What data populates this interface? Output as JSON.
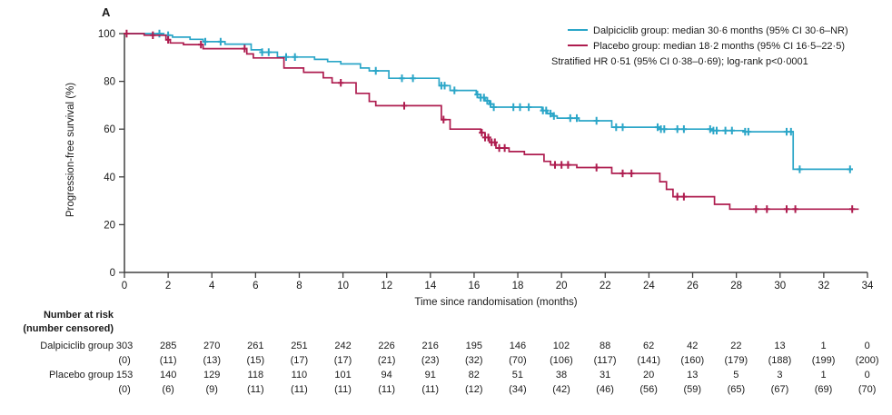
{
  "panel_label": "A",
  "colors": {
    "dalpiciclib": "#2BA6C8",
    "placebo": "#AE1C4F",
    "axis": "#404040",
    "text": "#1A1A1A"
  },
  "legend": {
    "entries": [
      {
        "label": "Dalpiciclib group: median 30·6 months (95% CI 30·6–NR)",
        "color_key": "dalpiciclib"
      },
      {
        "label": "Placebo group: median 18·2 months (95% CI 16·5–22·5)",
        "color_key": "placebo"
      }
    ],
    "note": "Stratified HR 0·51 (95% CI 0·38–0·69); log-rank p<0·0001"
  },
  "chart_data": {
    "type": "line",
    "subtype": "kaplan-meier-step",
    "title": "",
    "xlabel": "Time since randomisation (months)",
    "ylabel": "Progression-free survival (%)",
    "xlim": [
      0,
      34
    ],
    "ylim": [
      0,
      100
    ],
    "xticks": [
      0,
      2,
      4,
      6,
      8,
      10,
      12,
      14,
      16,
      18,
      20,
      22,
      24,
      26,
      28,
      30,
      32,
      34
    ],
    "yticks": [
      0,
      20,
      40,
      60,
      80,
      100
    ],
    "grid": false,
    "legend_position": "top-right",
    "series": [
      {
        "name": "Dalpiciclib group",
        "color_key": "dalpiciclib",
        "median_months": "30·6",
        "ci95": "30·6–NR",
        "steps": [
          [
            0,
            100
          ],
          [
            1.8,
            99.3
          ],
          [
            2.2,
            98.5
          ],
          [
            3.0,
            97.6
          ],
          [
            3.6,
            96.6
          ],
          [
            4.6,
            95.6
          ],
          [
            5.8,
            93.2
          ],
          [
            6.3,
            92.2
          ],
          [
            7.0,
            90.2
          ],
          [
            8.7,
            89.2
          ],
          [
            9.3,
            88.3
          ],
          [
            9.9,
            87.3
          ],
          [
            10.8,
            85.6
          ],
          [
            11.2,
            84.4
          ],
          [
            12.1,
            81.3
          ],
          [
            14.4,
            78.2
          ],
          [
            14.9,
            76.2
          ],
          [
            16.1,
            74.5
          ],
          [
            16.3,
            73.2
          ],
          [
            16.5,
            71.9
          ],
          [
            16.7,
            70.5
          ],
          [
            16.9,
            69.2
          ],
          [
            19.1,
            67.8
          ],
          [
            19.35,
            66.5
          ],
          [
            19.6,
            65.5
          ],
          [
            19.8,
            64.6
          ],
          [
            20.8,
            63.5
          ],
          [
            22.3,
            60.8
          ],
          [
            24.5,
            60.0
          ],
          [
            26.9,
            59.4
          ],
          [
            28.4,
            58.9
          ],
          [
            30.6,
            43.2
          ],
          [
            33.3,
            43.2
          ]
        ],
        "censor_months": [
          1.6,
          2.0,
          3.7,
          4.4,
          6.3,
          6.6,
          7.4,
          7.8,
          11.5,
          12.7,
          13.2,
          14.5,
          14.65,
          15.1,
          16.15,
          16.3,
          16.45,
          16.6,
          16.75,
          16.9,
          17.8,
          18.1,
          18.5,
          19.15,
          19.3,
          19.5,
          19.65,
          20.4,
          20.7,
          21.6,
          22.5,
          22.8,
          24.4,
          24.55,
          24.7,
          25.3,
          25.6,
          26.8,
          26.95,
          27.1,
          27.5,
          27.8,
          28.4,
          28.55,
          30.3,
          30.5,
          30.9,
          33.2
        ]
      },
      {
        "name": "Placebo group",
        "color_key": "placebo",
        "median_months": "18·2",
        "ci95": "16·5–22·5",
        "steps": [
          [
            0,
            100
          ],
          [
            0.9,
            99.3
          ],
          [
            1.9,
            97.4
          ],
          [
            2.1,
            96.1
          ],
          [
            2.7,
            95.4
          ],
          [
            3.6,
            93.7
          ],
          [
            5.6,
            91.5
          ],
          [
            5.9,
            89.8
          ],
          [
            7.3,
            85.6
          ],
          [
            8.2,
            83.8
          ],
          [
            9.1,
            81.5
          ],
          [
            9.5,
            79.4
          ],
          [
            10.6,
            75.0
          ],
          [
            11.2,
            71.6
          ],
          [
            11.5,
            69.8
          ],
          [
            14.5,
            64.0
          ],
          [
            14.9,
            60.0
          ],
          [
            16.3,
            58.5
          ],
          [
            16.5,
            56.5
          ],
          [
            16.7,
            54.5
          ],
          [
            17.0,
            52.1
          ],
          [
            17.6,
            50.6
          ],
          [
            18.3,
            49.4
          ],
          [
            19.2,
            46.5
          ],
          [
            19.5,
            45.0
          ],
          [
            20.7,
            43.9
          ],
          [
            22.3,
            41.5
          ],
          [
            24.5,
            38.0
          ],
          [
            24.8,
            34.8
          ],
          [
            25.1,
            31.7
          ],
          [
            27.0,
            28.5
          ],
          [
            27.7,
            26.5
          ],
          [
            33.6,
            26.5
          ]
        ],
        "censor_months": [
          0.1,
          1.3,
          2.0,
          3.5,
          5.5,
          9.9,
          12.8,
          14.6,
          16.35,
          16.5,
          16.65,
          16.8,
          16.95,
          17.15,
          17.4,
          19.7,
          20.0,
          20.3,
          21.6,
          22.8,
          23.2,
          25.3,
          25.6,
          28.9,
          29.4,
          30.3,
          30.7,
          33.3
        ]
      }
    ],
    "stats_note": "Stratified HR 0·51 (95% CI 0·38–0·69); log-rank p<0·0001"
  },
  "risk_table": {
    "header_line1": "Number at risk",
    "header_line2": "(number censored)",
    "rows": [
      {
        "label": "Dalpiciclib group",
        "counts": [
          "303",
          "285",
          "270",
          "261",
          "251",
          "242",
          "226",
          "216",
          "195",
          "146",
          "102",
          "88",
          "62",
          "42",
          "22",
          "13",
          "1",
          "0"
        ],
        "censored": [
          "(0)",
          "(11)",
          "(13)",
          "(15)",
          "(17)",
          "(17)",
          "(21)",
          "(23)",
          "(32)",
          "(70)",
          "(106)",
          "(117)",
          "(141)",
          "(160)",
          "(179)",
          "(188)",
          "(199)",
          "(200)"
        ]
      },
      {
        "label": "Placebo group",
        "counts": [
          "153",
          "140",
          "129",
          "118",
          "110",
          "101",
          "94",
          "91",
          "82",
          "51",
          "38",
          "31",
          "20",
          "13",
          "5",
          "3",
          "1",
          "0"
        ],
        "censored": [
          "(0)",
          "(6)",
          "(9)",
          "(11)",
          "(11)",
          "(11)",
          "(11)",
          "(11)",
          "(12)",
          "(34)",
          "(42)",
          "(46)",
          "(56)",
          "(59)",
          "(65)",
          "(67)",
          "(69)",
          "(70)"
        ]
      }
    ]
  }
}
